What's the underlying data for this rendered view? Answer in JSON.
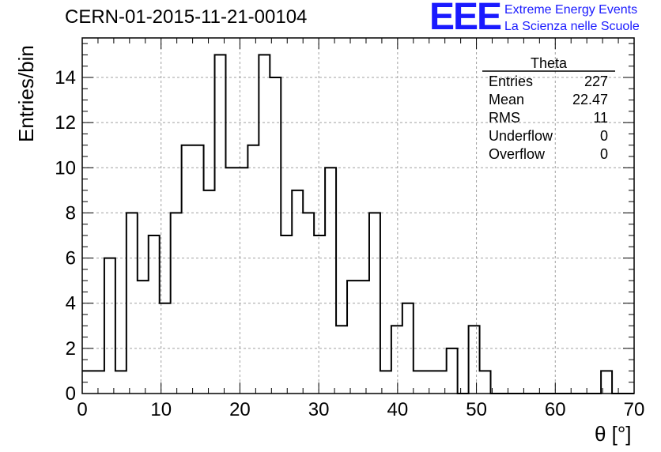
{
  "chart_data": {
    "type": "bar",
    "title": "CERN-01-2015-11-21-00104",
    "xlabel": "θ [°]",
    "ylabel": "Entries/bin",
    "xlim": [
      0,
      70
    ],
    "ylim": [
      0,
      15.75
    ],
    "x_ticks": [
      "0",
      "10",
      "20",
      "30",
      "40",
      "50",
      "60",
      "70"
    ],
    "y_ticks": [
      "0",
      "2",
      "4",
      "6",
      "8",
      "10",
      "12",
      "14"
    ],
    "grid": true,
    "bin_width": 1.4,
    "bin_start": 0,
    "values": [
      1,
      1,
      6,
      1,
      8,
      5,
      7,
      4,
      8,
      11,
      11,
      9,
      15,
      10,
      10,
      11,
      15,
      14,
      7,
      9,
      8,
      7,
      10,
      3,
      5,
      5,
      8,
      1,
      3,
      4,
      1,
      1,
      1,
      2,
      0,
      3,
      1,
      0,
      0,
      0,
      0,
      0,
      0,
      0,
      0,
      0,
      0,
      1,
      0,
      0
    ],
    "stats": {
      "name": "Theta",
      "rows": [
        {
          "label": "Entries",
          "value": "227"
        },
        {
          "label": "Mean",
          "value": "22.47"
        },
        {
          "label": "RMS",
          "value": "11"
        },
        {
          "label": "Underflow",
          "value": "0"
        },
        {
          "label": "Overflow",
          "value": "0"
        }
      ]
    }
  },
  "logo": {
    "mark": "EEE",
    "line1": "Extreme Energy Events",
    "line2": "La Scienza nelle Scuole"
  }
}
